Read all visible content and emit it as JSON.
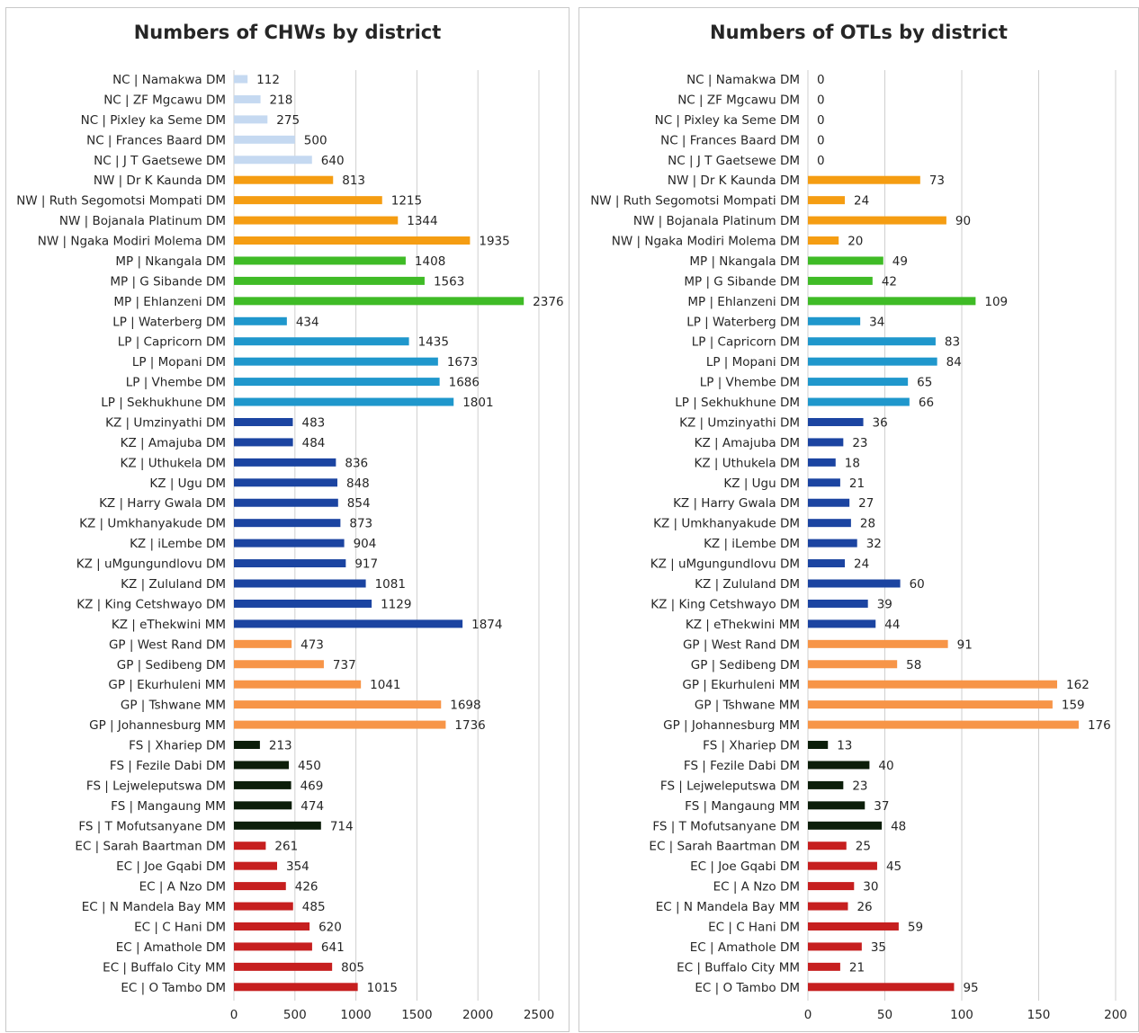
{
  "charts": [
    {
      "chart_data": {
        "type": "bar",
        "orientation": "horizontal",
        "title": "Numbers of CHWs by district",
        "xlabel": "",
        "ylabel": "",
        "xlim": [
          0,
          2500
        ],
        "xticks": [
          0,
          500,
          1000,
          1500,
          2000,
          2500
        ],
        "grid": true,
        "legend": "none",
        "categories": [
          "NC | Namakwa DM",
          "NC | ZF Mgcawu DM",
          "NC | Pixley ka Seme DM",
          "NC | Frances Baard DM",
          "NC | J T Gaetsewe DM",
          "NW | Dr K Kaunda DM",
          "NW | Ruth Segomotsi Mompati DM",
          "NW | Bojanala Platinum DM",
          "NW | Ngaka Modiri Molema DM",
          "MP | Nkangala DM",
          "MP | G Sibande DM",
          "MP | Ehlanzeni DM",
          "LP | Waterberg DM",
          "LP | Capricorn DM",
          "LP | Mopani DM",
          "LP | Vhembe DM",
          "LP | Sekhukhune DM",
          "KZ | Umzinyathi DM",
          "KZ | Amajuba DM",
          "KZ | Uthukela DM",
          "KZ | Ugu DM",
          "KZ | Harry Gwala DM",
          "KZ | Umkhanyakude DM",
          "KZ | iLembe DM",
          "KZ | uMgungundlovu DM",
          "KZ | Zululand DM",
          "KZ | King Cetshwayo DM",
          "KZ | eThekwini MM",
          "GP | West Rand DM",
          "GP | Sedibeng DM",
          "GP | Ekurhuleni MM",
          "GP | Tshwane MM",
          "GP | Johannesburg MM",
          "FS | Xhariep DM",
          "FS | Fezile Dabi DM",
          "FS | Lejweleputswa DM",
          "FS | Mangaung MM",
          "FS | T Mofutsanyane DM",
          "EC | Sarah Baartman DM",
          "EC | Joe Gqabi DM",
          "EC | A Nzo DM",
          "EC | N Mandela Bay MM",
          "EC | C Hani DM",
          "EC | Amathole DM",
          "EC | Buffalo City MM",
          "EC | O Tambo DM"
        ],
        "values": [
          112,
          218,
          275,
          500,
          640,
          813,
          1215,
          1344,
          1935,
          1408,
          1563,
          2376,
          434,
          1435,
          1673,
          1686,
          1801,
          483,
          484,
          836,
          848,
          854,
          873,
          904,
          917,
          1081,
          1129,
          1874,
          473,
          737,
          1041,
          1698,
          1736,
          213,
          450,
          469,
          474,
          714,
          261,
          354,
          426,
          485,
          620,
          641,
          805,
          1015
        ]
      }
    },
    {
      "chart_data": {
        "type": "bar",
        "orientation": "horizontal",
        "title": "Numbers of OTLs by district",
        "xlabel": "",
        "ylabel": "",
        "xlim": [
          0,
          200
        ],
        "xticks": [
          0,
          50,
          100,
          150,
          200
        ],
        "grid": true,
        "legend": "none",
        "categories": [
          "NC | Namakwa DM",
          "NC | ZF Mgcawu DM",
          "NC | Pixley ka Seme DM",
          "NC | Frances Baard DM",
          "NC | J T Gaetsewe DM",
          "NW | Dr K Kaunda DM",
          "NW | Ruth Segomotsi Mompati DM",
          "NW | Bojanala Platinum DM",
          "NW | Ngaka Modiri Molema DM",
          "MP | Nkangala DM",
          "MP | G Sibande DM",
          "MP | Ehlanzeni DM",
          "LP | Waterberg DM",
          "LP | Capricorn DM",
          "LP | Mopani DM",
          "LP | Vhembe DM",
          "LP | Sekhukhune DM",
          "KZ | Umzinyathi DM",
          "KZ | Amajuba DM",
          "KZ | Uthukela DM",
          "KZ | Ugu DM",
          "KZ | Harry Gwala DM",
          "KZ | Umkhanyakude DM",
          "KZ | iLembe DM",
          "KZ | uMgungundlovu DM",
          "KZ | Zululand DM",
          "KZ | King Cetshwayo DM",
          "KZ | eThekwini MM",
          "GP | West Rand DM",
          "GP | Sedibeng DM",
          "GP | Ekurhuleni MM",
          "GP | Tshwane MM",
          "GP | Johannesburg MM",
          "FS | Xhariep DM",
          "FS | Fezile Dabi DM",
          "FS | Lejweleputswa DM",
          "FS | Mangaung MM",
          "FS | T Mofutsanyane DM",
          "EC | Sarah Baartman DM",
          "EC | Joe Gqabi DM",
          "EC | A Nzo DM",
          "EC | N Mandela Bay MM",
          "EC | C Hani DM",
          "EC | Amathole DM",
          "EC | Buffalo City MM",
          "EC | O Tambo DM"
        ],
        "values": [
          0,
          0,
          0,
          0,
          0,
          73,
          24,
          90,
          20,
          49,
          42,
          109,
          34,
          83,
          84,
          65,
          66,
          36,
          23,
          18,
          21,
          27,
          28,
          32,
          24,
          60,
          39,
          44,
          91,
          58,
          162,
          159,
          176,
          13,
          40,
          23,
          37,
          48,
          25,
          45,
          30,
          26,
          59,
          35,
          21,
          95
        ]
      }
    }
  ],
  "province_colors": {
    "NC": "#c5d9f1",
    "NW": "#f59d12",
    "MP": "#3fbb26",
    "LP": "#1f97cc",
    "KZ": "#1b44a1",
    "GP": "#f79548",
    "FS": "#0c1e0a",
    "EC": "#c61f1f"
  },
  "grid_color": "#cfcfcf"
}
